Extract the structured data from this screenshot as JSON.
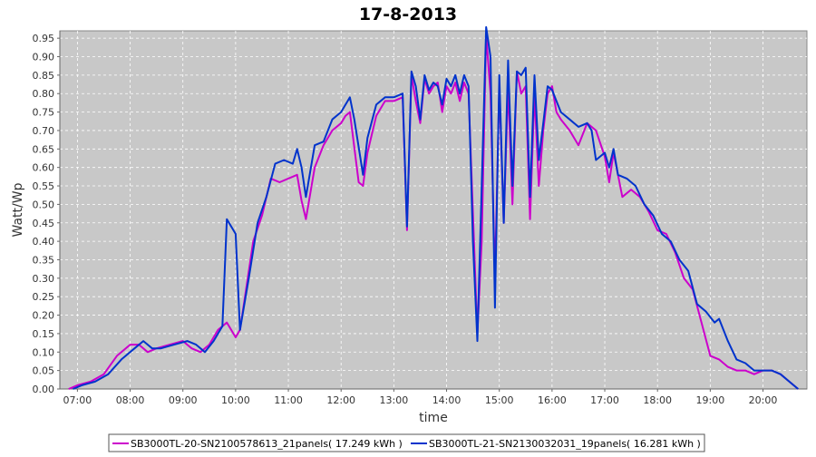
{
  "chart_data": {
    "type": "line",
    "title": "17-8-2013",
    "xlabel": "time",
    "ylabel": "Watt/Wp",
    "xlim": [
      "06:40",
      "20:50"
    ],
    "ylim": [
      0,
      0.97
    ],
    "grid": true,
    "legend_position": "bottom",
    "background_color": "#c8c8c8",
    "x_ticks": [
      "07:00",
      "08:00",
      "09:00",
      "10:00",
      "11:00",
      "12:00",
      "13:00",
      "14:00",
      "15:00",
      "16:00",
      "17:00",
      "18:00",
      "19:00",
      "20:00"
    ],
    "y_ticks": [
      "0.00",
      "0.05",
      "0.10",
      "0.15",
      "0.20",
      "0.25",
      "0.30",
      "0.35",
      "0.40",
      "0.45",
      "0.50",
      "0.55",
      "0.60",
      "0.65",
      "0.70",
      "0.75",
      "0.80",
      "0.85",
      "0.90",
      "0.95"
    ],
    "series": [
      {
        "name": "SB3000TL-20-SN2100578613_21panels( 17.249 kWh )",
        "color": "#cc00cc",
        "points": [
          [
            "06:50",
            0.0
          ],
          [
            "07:00",
            0.01
          ],
          [
            "07:15",
            0.02
          ],
          [
            "07:30",
            0.04
          ],
          [
            "07:45",
            0.09
          ],
          [
            "08:00",
            0.12
          ],
          [
            "08:10",
            0.12
          ],
          [
            "08:20",
            0.1
          ],
          [
            "08:30",
            0.11
          ],
          [
            "08:45",
            0.12
          ],
          [
            "09:00",
            0.13
          ],
          [
            "09:10",
            0.11
          ],
          [
            "09:20",
            0.1
          ],
          [
            "09:30",
            0.12
          ],
          [
            "09:40",
            0.16
          ],
          [
            "09:50",
            0.18
          ],
          [
            "10:00",
            0.14
          ],
          [
            "10:05",
            0.16
          ],
          [
            "10:10",
            0.24
          ],
          [
            "10:20",
            0.4
          ],
          [
            "10:30",
            0.47
          ],
          [
            "10:40",
            0.57
          ],
          [
            "10:50",
            0.56
          ],
          [
            "11:00",
            0.57
          ],
          [
            "11:10",
            0.58
          ],
          [
            "11:15",
            0.51
          ],
          [
            "11:20",
            0.46
          ],
          [
            "11:30",
            0.6
          ],
          [
            "11:40",
            0.66
          ],
          [
            "11:50",
            0.7
          ],
          [
            "12:00",
            0.72
          ],
          [
            "12:05",
            0.74
          ],
          [
            "12:10",
            0.75
          ],
          [
            "12:20",
            0.56
          ],
          [
            "12:25",
            0.55
          ],
          [
            "12:30",
            0.64
          ],
          [
            "12:40",
            0.74
          ],
          [
            "12:50",
            0.78
          ],
          [
            "13:00",
            0.78
          ],
          [
            "13:10",
            0.79
          ],
          [
            "13:15",
            0.43
          ],
          [
            "13:20",
            0.85
          ],
          [
            "13:25",
            0.78
          ],
          [
            "13:30",
            0.72
          ],
          [
            "13:35",
            0.84
          ],
          [
            "13:40",
            0.8
          ],
          [
            "13:45",
            0.82
          ],
          [
            "13:50",
            0.83
          ],
          [
            "13:55",
            0.75
          ],
          [
            "14:00",
            0.82
          ],
          [
            "14:05",
            0.8
          ],
          [
            "14:10",
            0.83
          ],
          [
            "14:15",
            0.78
          ],
          [
            "14:20",
            0.83
          ],
          [
            "14:25",
            0.8
          ],
          [
            "14:35",
            0.15
          ],
          [
            "14:40",
            0.4
          ],
          [
            "14:45",
            0.96
          ],
          [
            "14:50",
            0.8
          ],
          [
            "14:55",
            0.3
          ],
          [
            "15:00",
            0.82
          ],
          [
            "15:05",
            0.45
          ],
          [
            "15:10",
            0.82
          ],
          [
            "15:15",
            0.5
          ],
          [
            "15:20",
            0.86
          ],
          [
            "15:25",
            0.8
          ],
          [
            "15:30",
            0.82
          ],
          [
            "15:35",
            0.46
          ],
          [
            "15:40",
            0.8
          ],
          [
            "15:45",
            0.55
          ],
          [
            "15:50",
            0.7
          ],
          [
            "15:55",
            0.8
          ],
          [
            "16:00",
            0.82
          ],
          [
            "16:05",
            0.75
          ],
          [
            "16:10",
            0.73
          ],
          [
            "16:20",
            0.7
          ],
          [
            "16:30",
            0.66
          ],
          [
            "16:40",
            0.72
          ],
          [
            "16:50",
            0.7
          ],
          [
            "17:00",
            0.63
          ],
          [
            "17:05",
            0.56
          ],
          [
            "17:10",
            0.64
          ],
          [
            "17:15",
            0.58
          ],
          [
            "17:20",
            0.52
          ],
          [
            "17:30",
            0.54
          ],
          [
            "17:40",
            0.52
          ],
          [
            "17:50",
            0.48
          ],
          [
            "18:00",
            0.43
          ],
          [
            "18:10",
            0.42
          ],
          [
            "18:20",
            0.37
          ],
          [
            "18:30",
            0.3
          ],
          [
            "18:40",
            0.27
          ],
          [
            "18:50",
            0.18
          ],
          [
            "19:00",
            0.09
          ],
          [
            "19:10",
            0.08
          ],
          [
            "19:20",
            0.06
          ],
          [
            "19:30",
            0.05
          ],
          [
            "19:40",
            0.05
          ],
          [
            "19:50",
            0.04
          ],
          [
            "20:00",
            0.05
          ],
          [
            "20:10",
            0.05
          ],
          [
            "20:20",
            0.04
          ],
          [
            "20:30",
            0.02
          ],
          [
            "20:40",
            0.0
          ]
        ]
      },
      {
        "name": "SB3000TL-21-SN2130032031_19panels( 16.281 kWh )",
        "color": "#0033cc",
        "points": [
          [
            "06:55",
            0.0
          ],
          [
            "07:05",
            0.01
          ],
          [
            "07:20",
            0.02
          ],
          [
            "07:35",
            0.04
          ],
          [
            "07:50",
            0.08
          ],
          [
            "08:05",
            0.11
          ],
          [
            "08:15",
            0.13
          ],
          [
            "08:25",
            0.11
          ],
          [
            "08:35",
            0.11
          ],
          [
            "08:50",
            0.12
          ],
          [
            "09:05",
            0.13
          ],
          [
            "09:15",
            0.12
          ],
          [
            "09:25",
            0.1
          ],
          [
            "09:35",
            0.13
          ],
          [
            "09:45",
            0.17
          ],
          [
            "09:50",
            0.46
          ],
          [
            "10:00",
            0.42
          ],
          [
            "10:05",
            0.16
          ],
          [
            "10:15",
            0.3
          ],
          [
            "10:25",
            0.45
          ],
          [
            "10:35",
            0.52
          ],
          [
            "10:45",
            0.61
          ],
          [
            "10:55",
            0.62
          ],
          [
            "11:05",
            0.61
          ],
          [
            "11:10",
            0.65
          ],
          [
            "11:15",
            0.6
          ],
          [
            "11:20",
            0.52
          ],
          [
            "11:30",
            0.66
          ],
          [
            "11:40",
            0.67
          ],
          [
            "11:50",
            0.73
          ],
          [
            "12:00",
            0.75
          ],
          [
            "12:10",
            0.79
          ],
          [
            "12:15",
            0.73
          ],
          [
            "12:25",
            0.58
          ],
          [
            "12:30",
            0.68
          ],
          [
            "12:40",
            0.77
          ],
          [
            "12:50",
            0.79
          ],
          [
            "13:00",
            0.79
          ],
          [
            "13:10",
            0.8
          ],
          [
            "13:15",
            0.44
          ],
          [
            "13:20",
            0.86
          ],
          [
            "13:25",
            0.82
          ],
          [
            "13:30",
            0.73
          ],
          [
            "13:35",
            0.85
          ],
          [
            "13:40",
            0.81
          ],
          [
            "13:45",
            0.83
          ],
          [
            "13:50",
            0.82
          ],
          [
            "13:55",
            0.77
          ],
          [
            "14:00",
            0.84
          ],
          [
            "14:05",
            0.82
          ],
          [
            "14:10",
            0.85
          ],
          [
            "14:15",
            0.8
          ],
          [
            "14:20",
            0.85
          ],
          [
            "14:25",
            0.82
          ],
          [
            "14:30",
            0.4
          ],
          [
            "14:35",
            0.13
          ],
          [
            "14:40",
            0.55
          ],
          [
            "14:45",
            0.98
          ],
          [
            "14:50",
            0.9
          ],
          [
            "14:55",
            0.22
          ],
          [
            "15:00",
            0.85
          ],
          [
            "15:05",
            0.45
          ],
          [
            "15:10",
            0.89
          ],
          [
            "15:15",
            0.55
          ],
          [
            "15:20",
            0.86
          ],
          [
            "15:25",
            0.85
          ],
          [
            "15:30",
            0.87
          ],
          [
            "15:35",
            0.52
          ],
          [
            "15:40",
            0.85
          ],
          [
            "15:45",
            0.62
          ],
          [
            "15:50",
            0.72
          ],
          [
            "15:55",
            0.82
          ],
          [
            "16:00",
            0.81
          ],
          [
            "16:05",
            0.78
          ],
          [
            "16:10",
            0.75
          ],
          [
            "16:20",
            0.73
          ],
          [
            "16:30",
            0.71
          ],
          [
            "16:40",
            0.72
          ],
          [
            "16:45",
            0.7
          ],
          [
            "16:50",
            0.62
          ],
          [
            "17:00",
            0.64
          ],
          [
            "17:05",
            0.6
          ],
          [
            "17:10",
            0.65
          ],
          [
            "17:15",
            0.58
          ],
          [
            "17:25",
            0.57
          ],
          [
            "17:35",
            0.55
          ],
          [
            "17:45",
            0.5
          ],
          [
            "17:55",
            0.47
          ],
          [
            "18:05",
            0.42
          ],
          [
            "18:15",
            0.4
          ],
          [
            "18:25",
            0.35
          ],
          [
            "18:35",
            0.32
          ],
          [
            "18:45",
            0.23
          ],
          [
            "18:55",
            0.21
          ],
          [
            "19:05",
            0.18
          ],
          [
            "19:10",
            0.19
          ],
          [
            "19:20",
            0.13
          ],
          [
            "19:30",
            0.08
          ],
          [
            "19:40",
            0.07
          ],
          [
            "19:50",
            0.05
          ],
          [
            "20:00",
            0.05
          ],
          [
            "20:10",
            0.05
          ],
          [
            "20:20",
            0.04
          ],
          [
            "20:30",
            0.02
          ],
          [
            "20:40",
            0.0
          ]
        ]
      }
    ]
  }
}
